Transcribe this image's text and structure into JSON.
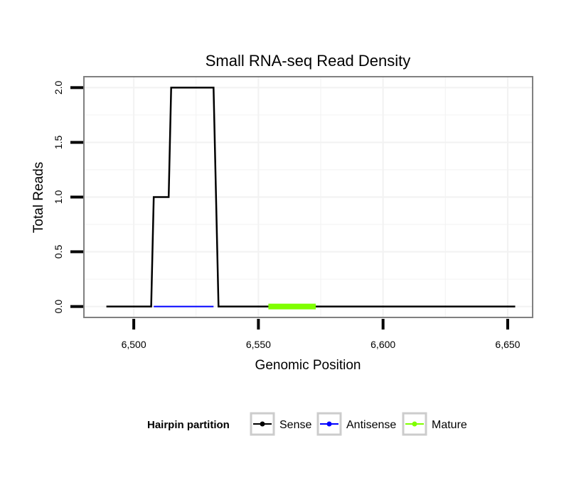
{
  "chart_data": {
    "type": "line",
    "title": "Small RNA-seq Read Density",
    "xlabel": "Genomic Position",
    "ylabel": "Total Reads",
    "xlim": [
      6480,
      6660
    ],
    "ylim": [
      -0.1,
      2.1
    ],
    "x_ticks": [
      6500,
      6550,
      6600,
      6650
    ],
    "x_tick_labels": [
      "6,500",
      "6,550",
      "6,600",
      "6,650"
    ],
    "y_ticks": [
      0,
      0.5,
      1,
      1.5,
      2
    ],
    "y_tick_labels": [
      "0.0",
      "0.5",
      "1.0",
      "1.5",
      "2.0"
    ],
    "grid": true,
    "series": [
      {
        "name": "Sense",
        "color": "#000000",
        "x": [
          6489,
          6507,
          6508,
          6514,
          6515,
          6532,
          6534,
          6653
        ],
        "y": [
          0,
          0,
          1,
          1,
          2,
          2,
          0,
          0
        ]
      },
      {
        "name": "Antisense",
        "color": "#0000ff",
        "x": [
          6508,
          6532
        ],
        "y": [
          0,
          0
        ]
      },
      {
        "name": "Mature",
        "color": "#7fff00",
        "x": [
          6554,
          6573
        ],
        "y": [
          0,
          0
        ]
      }
    ],
    "legend": {
      "title": "Hairpin partition",
      "position": "bottom",
      "entries": [
        "Sense",
        "Antisense",
        "Mature"
      ]
    }
  }
}
